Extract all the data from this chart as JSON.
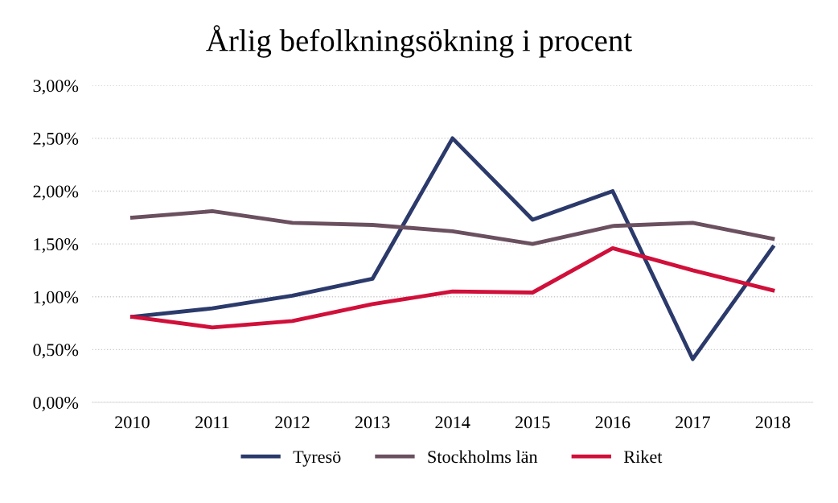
{
  "chart_data": {
    "type": "line",
    "title": "Årlig befolkningsökning i procent",
    "categories": [
      "2010",
      "2011",
      "2012",
      "2013",
      "2014",
      "2015",
      "2016",
      "2017",
      "2018"
    ],
    "series": [
      {
        "name": "Tyresö",
        "color": "#2b3a6b",
        "values": [
          0.81,
          0.89,
          1.01,
          1.17,
          2.5,
          1.73,
          2.0,
          0.41,
          1.47
        ]
      },
      {
        "name": "Stockholms län",
        "color": "#6b5060",
        "values": [
          1.75,
          1.81,
          1.7,
          1.68,
          1.62,
          1.5,
          1.67,
          1.7,
          1.55
        ]
      },
      {
        "name": "Riket",
        "color": "#d0103a",
        "values": [
          0.81,
          0.71,
          0.77,
          0.93,
          1.05,
          1.04,
          1.46,
          1.25,
          1.06
        ]
      }
    ],
    "ylim": [
      0,
      3
    ],
    "yticks": [
      {
        "value": 0,
        "label": "0,00%"
      },
      {
        "value": 0.5,
        "label": "0,50%"
      },
      {
        "value": 1,
        "label": "1,00%"
      },
      {
        "value": 1.5,
        "label": "1,50%"
      },
      {
        "value": 2,
        "label": "2,00%"
      },
      {
        "value": 2.5,
        "label": "2,50%"
      },
      {
        "value": 3,
        "label": "3,00%"
      }
    ],
    "grid": "y",
    "legend": "bottom",
    "marker": "none",
    "line_style": "solid"
  }
}
